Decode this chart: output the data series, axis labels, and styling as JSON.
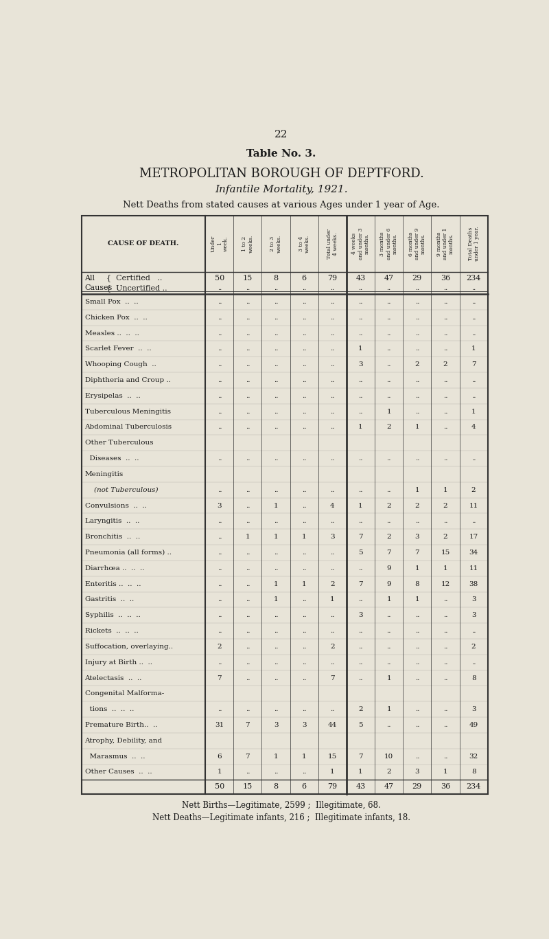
{
  "page_number": "22",
  "title_bold": "Table No. 3.",
  "title_main": "METROPOLITAN BOROUGH OF DEPTFORD.",
  "title_sub": "Infantile Mortality, 1921.",
  "title_desc": "Nett Deaths from stated causes at various Ages under 1 year of Age.",
  "col_headers": [
    "Under\n1\nweek.",
    "1 to 2\nweeks.",
    "2 to 3\nweeks.",
    "3 to 4\nweeks.",
    "Total under\n4 weeks.",
    "4 weeks\nand under 3\nmonths.",
    "3 months\nand under 6\nmonths.",
    "6 months\nand under 9\nmonths.",
    "9 months\nand under 1\nmonths.",
    "Total Deaths\nunder 1 year."
  ],
  "row_label_header": "CAUSE OF DEATH.",
  "rows": [
    {
      "label": "Small Pox  ..  ..",
      "values": [
        "..",
        "..",
        "..",
        "..",
        "..",
        "..",
        "..",
        "..",
        "..",
        ".."
      ]
    },
    {
      "label": "Chicken Pox  ..  ..",
      "values": [
        "..",
        "..",
        "..",
        "..",
        "..",
        "..",
        "..",
        "..",
        "..",
        ".."
      ]
    },
    {
      "label": "Measles ..  ..  ..",
      "values": [
        "..",
        "..",
        "..",
        "..",
        "..",
        "..",
        "..",
        "..",
        "..",
        ".."
      ]
    },
    {
      "label": "Scarlet Fever  ..  ..",
      "values": [
        "..",
        "..",
        "..",
        "..",
        "..",
        "1",
        "..",
        "..",
        "..",
        "1"
      ]
    },
    {
      "label": "Whooping Cough  ..",
      "values": [
        "..",
        "..",
        "..",
        "..",
        "..",
        "3",
        "..",
        "2",
        "2",
        "7"
      ]
    },
    {
      "label": "Diphtheria and Croup ..",
      "values": [
        "..",
        "..",
        "..",
        "..",
        "..",
        "..",
        "..",
        "..",
        "..",
        ".."
      ]
    },
    {
      "label": "Erysipelas  ..  ..",
      "values": [
        "..",
        "..",
        "..",
        "..",
        "..",
        "..",
        "..",
        "..",
        "..",
        ".."
      ]
    },
    {
      "label": "Tuberculous Meningitis",
      "values": [
        "..",
        "..",
        "..",
        "..",
        "..",
        "..",
        "1",
        "..",
        "..",
        "1"
      ]
    },
    {
      "label": "Abdominal Tuberculosis",
      "values": [
        "..",
        "..",
        "..",
        "..",
        "..",
        "1",
        "2",
        "1",
        "..",
        "4"
      ]
    },
    {
      "label": "Other Tuberculous",
      "values": [
        "",
        "",
        "",
        "",
        "",
        "",
        "",
        "",
        "",
        ""
      ],
      "no_values": true
    },
    {
      "label": "  Diseases  ..  ..",
      "values": [
        "..",
        "..",
        "..",
        "..",
        "..",
        "..",
        "..",
        "..",
        "..",
        ".."
      ]
    },
    {
      "label": "Meningitis",
      "values": [
        "",
        "",
        "",
        "",
        "",
        "",
        "",
        "",
        "",
        ""
      ],
      "no_values": true
    },
    {
      "label": "    (not Tuberculous)",
      "values": [
        "..",
        "..",
        "..",
        "..",
        "..",
        "..",
        "..",
        "1",
        "1",
        "2"
      ],
      "italic": true
    },
    {
      "label": "Convulsions  ..  ..",
      "values": [
        "3",
        "..",
        "1",
        "..",
        "4",
        "1",
        "2",
        "2",
        "2",
        "11"
      ]
    },
    {
      "label": "Laryngitis  ..  ..",
      "values": [
        "..",
        "..",
        "..",
        "..",
        "..",
        "..",
        "..",
        "..",
        "..",
        ".."
      ]
    },
    {
      "label": "Bronchitis  ..  ..",
      "values": [
        "..",
        "1",
        "1",
        "1",
        "3",
        "7",
        "2",
        "3",
        "2",
        "17"
      ]
    },
    {
      "label": "Pneumonia (all forms) ..",
      "values": [
        "..",
        "..",
        "..",
        "..",
        "..",
        "5",
        "7",
        "7",
        "15",
        "34"
      ]
    },
    {
      "label": "Diarrhœa ..  ..  ..",
      "values": [
        "..",
        "..",
        "..",
        "..",
        "..",
        "..",
        "9",
        "1",
        "1",
        "11"
      ]
    },
    {
      "label": "Enteritis ..  ..  ..",
      "values": [
        "..",
        "..",
        "1",
        "1",
        "2",
        "7",
        "9",
        "8",
        "12",
        "38"
      ]
    },
    {
      "label": "Gastritis  ..  ..",
      "values": [
        "..",
        "..",
        "1",
        "..",
        "1",
        "..",
        "1",
        "1",
        "..",
        "3"
      ]
    },
    {
      "label": "Syphilis  ..  ..  ..",
      "values": [
        "..",
        "..",
        "..",
        "..",
        "..",
        "3",
        "..",
        "..",
        "..",
        "3"
      ]
    },
    {
      "label": "Rickets  ..  ..  ..",
      "values": [
        "..",
        "..",
        "..",
        "..",
        "..",
        "..",
        "..",
        "..",
        "..",
        ".."
      ]
    },
    {
      "label": "Suffocation, overlaying..",
      "values": [
        "2",
        "..",
        "..",
        "..",
        "2",
        "..",
        "..",
        "..",
        "..",
        "2"
      ]
    },
    {
      "label": "Injury at Birth ..  ..",
      "values": [
        "..",
        "..",
        "..",
        "..",
        "..",
        "..",
        "..",
        "..",
        "..",
        ".."
      ]
    },
    {
      "label": "Atelectasis  ..  ..",
      "values": [
        "7",
        "..",
        "..",
        "..",
        "7",
        "..",
        "1",
        "..",
        "..",
        "8"
      ]
    },
    {
      "label": "Congenital Malforma-",
      "values": [
        "",
        "",
        "",
        "",
        "",
        "",
        "",
        "",
        "",
        ""
      ],
      "no_values": true
    },
    {
      "label": "  tions  ..  ..  ..",
      "values": [
        "..",
        "..",
        "..",
        "..",
        "..",
        "2",
        "1",
        "..",
        "..",
        "3"
      ]
    },
    {
      "label": "Premature Birth..  ..",
      "values": [
        "31",
        "7",
        "3",
        "3",
        "44",
        "5",
        "..",
        "..",
        "..",
        "49"
      ]
    },
    {
      "label": "Atrophy, Debility, and",
      "values": [
        "",
        "",
        "",
        "",
        "",
        "",
        "",
        "",
        "",
        ""
      ],
      "no_values": true
    },
    {
      "label": "  Marasmus  ..  ..",
      "values": [
        "6",
        "7",
        "1",
        "1",
        "15",
        "7",
        "10",
        "..",
        "..",
        "32"
      ]
    },
    {
      "label": "Other Causes  ..  ..",
      "values": [
        "1",
        "..",
        "..",
        "..",
        "1",
        "1",
        "2",
        "3",
        "1",
        "8"
      ]
    }
  ],
  "all_certified_values": [
    "50",
    "15",
    "8",
    "6",
    "79",
    "43",
    "47",
    "29",
    "36",
    "234"
  ],
  "all_uncertified_values": [
    "..",
    "..",
    "..",
    "..",
    "..",
    "..",
    "..",
    "..",
    "..",
    ".."
  ],
  "totals": [
    "50",
    "15",
    "8",
    "6",
    "79",
    "43",
    "47",
    "29",
    "36",
    "234"
  ],
  "footer1": "Nett Births—Legitimate, 2599 ;  Illegitimate, 68.",
  "footer2": "Nett Deaths—Legitimate infants, 216 ;  Illegitimate infants, 18.",
  "bg_color": "#e8e4d8",
  "text_color": "#1a1a1a",
  "border_color": "#333333"
}
